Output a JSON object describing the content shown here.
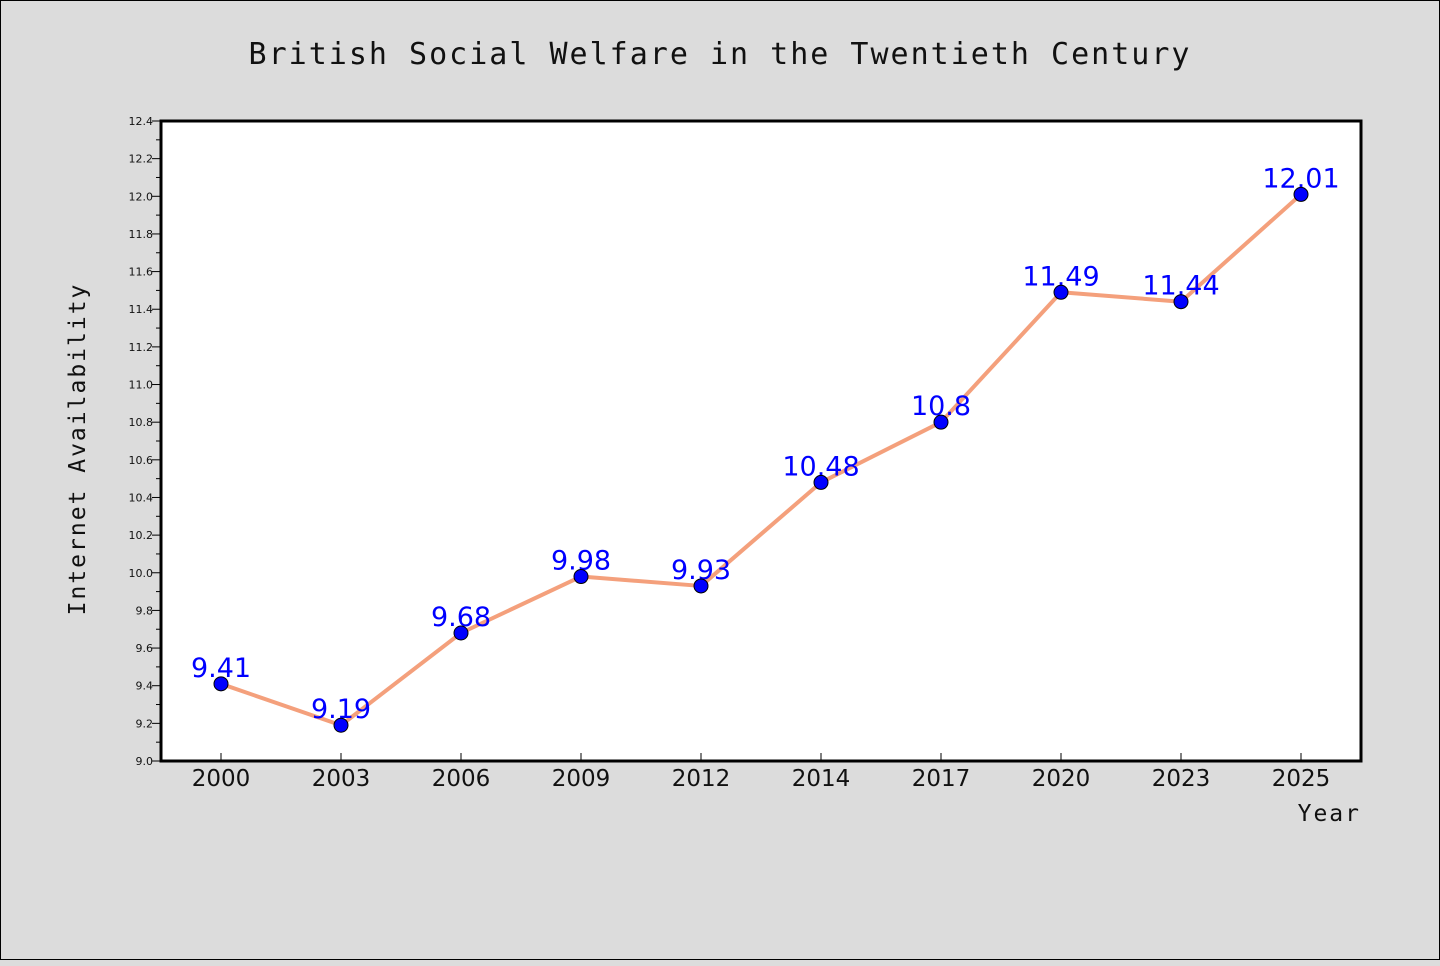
{
  "chart_data": {
    "type": "line",
    "title": "British Social Welfare in the Twentieth Century",
    "xlabel": "Year",
    "ylabel": "Internet Availability",
    "categories": [
      "2000",
      "2003",
      "2006",
      "2009",
      "2012",
      "2014",
      "2017",
      "2020",
      "2023",
      "2025"
    ],
    "series": [
      {
        "values": [
          9.41,
          9.19,
          9.68,
          9.98,
          9.93,
          10.48,
          10.8,
          11.49,
          11.44,
          12.01
        ],
        "labels": [
          "9.41",
          "9.19",
          "9.68",
          "9.98",
          "9.93",
          "10.48",
          "10.8",
          "11.49",
          "11.44",
          "12.01"
        ]
      }
    ],
    "ylim": [
      9.0,
      12.4
    ],
    "yticks": [
      "9.0",
      "9.2",
      "9.4",
      "9.6",
      "9.8",
      "10.0",
      "10.2",
      "10.4",
      "10.6",
      "10.8",
      "11.0",
      "11.2",
      "11.4",
      "11.6",
      "11.8",
      "12.0",
      "12.2",
      "12.4"
    ],
    "grid": false,
    "colors": {
      "line": "#f4a07c",
      "marker": "#0000ff",
      "label": "#0000ff",
      "background": "#dcdcdc",
      "plot_background": "#ffffff"
    }
  }
}
